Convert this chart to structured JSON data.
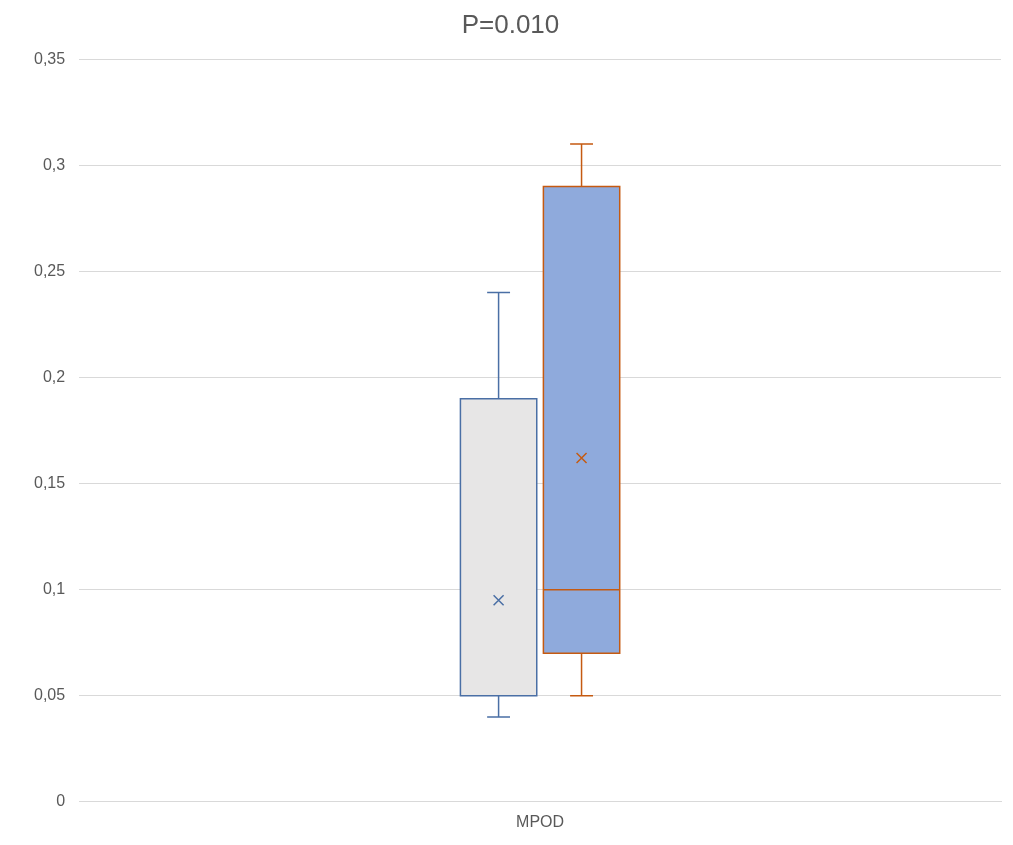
{
  "chart_data": {
    "type": "box",
    "title": "P=0.010",
    "categories": [
      "MPOD"
    ],
    "series": [
      {
        "color": "#e7e6e6",
        "boxes": [
          {
            "low": 0.04,
            "q1": 0.05,
            "median": 0.05,
            "q3": 0.19,
            "high": 0.24,
            "mean": 0.095
          }
        ]
      },
      {
        "color": "#8faadc",
        "boxes": [
          {
            "low": 0.05,
            "q1": 0.07,
            "median": 0.1,
            "q3": 0.29,
            "high": 0.31,
            "mean": 0.162
          }
        ]
      }
    ],
    "ylim": [
      0,
      0.35
    ],
    "yticks": [
      0,
      {
        "value": 0.05,
        "label": "0,05"
      },
      {
        "value": 0.1,
        "label": "0,1"
      },
      {
        "value": 0.15,
        "label": "0,15"
      },
      {
        "value": 0.2,
        "label": "0,2"
      },
      {
        "value": 0.25,
        "label": "0,25"
      },
      {
        "value": 0.3,
        "label": "0,3"
      },
      {
        "value": 0.35,
        "label": "0,35"
      }
    ],
    "grid": "y",
    "legend": false,
    "marker": "cross"
  }
}
